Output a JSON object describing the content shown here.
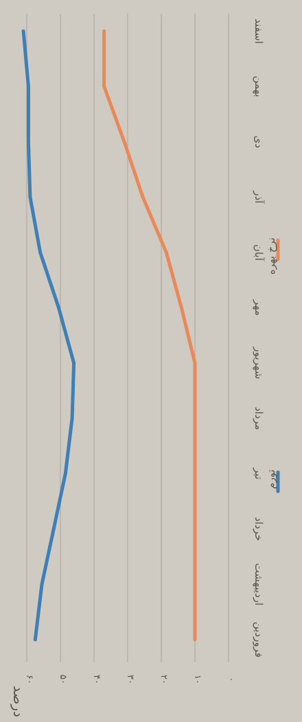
{
  "chart_data": {
    "type": "line",
    "orientation": "rotated-90-clockwise",
    "ylabel": "درصد",
    "categories": [
      "فروردین",
      "اردیبهشت",
      "خرداد",
      "تیر",
      "مرداد",
      "شهریور",
      "مهر",
      "آبان",
      "آذر",
      "دی",
      "بهمن",
      "اسفند"
    ],
    "y_ticks": [
      "۰",
      "۱۰",
      "۲۰",
      "۳۰",
      "۴۰",
      "۵۰",
      "۶۰"
    ],
    "ylim": [
      0,
      60
    ],
    "grid": true,
    "legend_position": "bottom",
    "series": [
      {
        "name": "تورم",
        "color": "#3e7fb6",
        "values": [
          57.5,
          55.5,
          52.0,
          48.5,
          46.5,
          46.0,
          50.5,
          56.0,
          59.0,
          59.5,
          59.5,
          61.0
        ]
      },
      {
        "name": "نرخ بهره",
        "color": "#e8895a",
        "values": [
          10.0,
          10.0,
          10.0,
          10.0,
          10.0,
          10.0,
          14.0,
          18.5,
          25.5,
          31.0,
          37.0,
          37.0
        ]
      }
    ]
  }
}
